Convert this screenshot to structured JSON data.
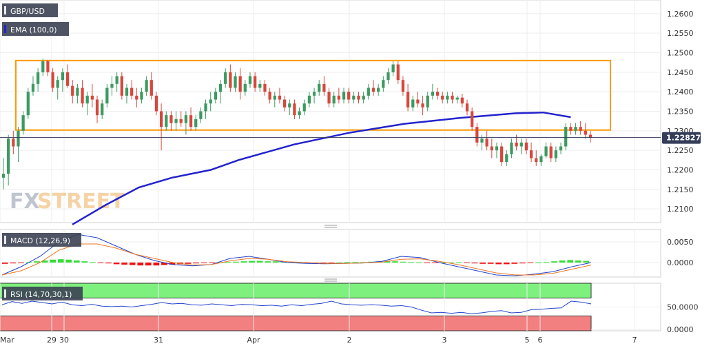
{
  "badges": {
    "symbol": "GBP/USD",
    "ema": "EMA (100,0)",
    "macd": "MACD (12,26,9)",
    "rsi": "RSI (14,70,30,1)"
  },
  "watermark": {
    "left": "FX",
    "right": "STREET"
  },
  "last_price": "1.22827",
  "chart_data": [
    {
      "type": "candlestick",
      "panel": "price",
      "y_ticks": [
        "1.2600",
        "1.2550",
        "1.2500",
        "1.2450",
        "1.2400",
        "1.2350",
        "1.2300",
        "1.2250",
        "1.2200",
        "1.2150",
        "1.2100"
      ],
      "ylim": [
        1.2065,
        1.2635
      ],
      "x_ticks": [
        "Mar",
        "29",
        "30",
        "31",
        "Apr",
        "2",
        "3",
        "5",
        "6",
        "7"
      ],
      "last_price": 1.22827,
      "range_box": {
        "top": 1.248,
        "bottom": 1.2302
      },
      "ema_100": [
        [
          0.0,
          1.206
        ],
        [
          6.0,
          1.211
        ],
        [
          12.0,
          1.2155
        ],
        [
          18.0,
          1.218
        ],
        [
          25.0,
          1.22
        ],
        [
          30.0,
          1.2225
        ],
        [
          40.0,
          1.2265
        ],
        [
          50.0,
          1.2295
        ],
        [
          60.0,
          1.2318
        ],
        [
          70.0,
          1.2333
        ],
        [
          80.0,
          1.2345
        ],
        [
          85.0,
          1.2347
        ],
        [
          90.0,
          1.2335
        ],
        [
          100.0,
          1.2315
        ],
        [
          106.0,
          1.2309
        ]
      ],
      "candles_ohlc": [
        [
          1.218,
          1.223,
          1.215,
          1.219
        ],
        [
          1.219,
          1.229,
          1.216,
          1.228
        ],
        [
          1.228,
          1.23,
          1.224,
          1.226
        ],
        [
          1.226,
          1.231,
          1.222,
          1.23
        ],
        [
          1.23,
          1.235,
          1.229,
          1.234
        ],
        [
          1.234,
          1.241,
          1.233,
          1.24
        ],
        [
          1.24,
          1.244,
          1.239,
          1.242
        ],
        [
          1.242,
          1.246,
          1.24,
          1.245
        ],
        [
          1.245,
          1.2485,
          1.244,
          1.2478
        ],
        [
          1.2478,
          1.2482,
          1.244,
          1.245
        ],
        [
          1.245,
          1.246,
          1.24,
          1.241
        ],
        [
          1.241,
          1.244,
          1.238,
          1.243
        ],
        [
          1.243,
          1.246,
          1.24,
          1.245
        ],
        [
          1.245,
          1.247,
          1.241,
          1.2415
        ],
        [
          1.2415,
          1.243,
          1.237,
          1.239
        ],
        [
          1.239,
          1.242,
          1.237,
          1.241
        ],
        [
          1.241,
          1.243,
          1.236,
          1.237
        ],
        [
          1.237,
          1.24,
          1.234,
          1.239
        ],
        [
          1.239,
          1.242,
          1.236,
          1.238
        ],
        [
          1.238,
          1.239,
          1.232,
          1.234
        ],
        [
          1.234,
          1.238,
          1.233,
          1.237
        ],
        [
          1.237,
          1.242,
          1.236,
          1.241
        ],
        [
          1.241,
          1.244,
          1.239,
          1.242
        ],
        [
          1.242,
          1.245,
          1.24,
          1.244
        ],
        [
          1.244,
          1.245,
          1.238,
          1.239
        ],
        [
          1.239,
          1.242,
          1.237,
          1.241
        ],
        [
          1.241,
          1.243,
          1.238,
          1.239
        ],
        [
          1.239,
          1.241,
          1.236,
          1.238
        ],
        [
          1.238,
          1.241,
          1.237,
          1.24
        ],
        [
          1.24,
          1.244,
          1.239,
          1.243
        ],
        [
          1.243,
          1.245,
          1.238,
          1.239
        ],
        [
          1.239,
          1.24,
          1.234,
          1.235
        ],
        [
          1.235,
          1.237,
          1.225,
          1.231
        ],
        [
          1.231,
          1.235,
          1.23,
          1.234
        ],
        [
          1.234,
          1.235,
          1.23,
          1.232
        ],
        [
          1.232,
          1.235,
          1.23,
          1.233
        ],
        [
          1.233,
          1.235,
          1.231,
          1.232
        ],
        [
          1.232,
          1.235,
          1.229,
          1.234
        ],
        [
          1.234,
          1.236,
          1.23,
          1.231
        ],
        [
          1.231,
          1.234,
          1.23,
          1.233
        ],
        [
          1.233,
          1.236,
          1.232,
          1.235
        ],
        [
          1.235,
          1.238,
          1.233,
          1.237
        ],
        [
          1.237,
          1.24,
          1.235,
          1.238
        ],
        [
          1.238,
          1.241,
          1.237,
          1.24
        ],
        [
          1.24,
          1.243,
          1.237,
          1.242
        ],
        [
          1.242,
          1.246,
          1.241,
          1.245
        ],
        [
          1.245,
          1.247,
          1.24,
          1.241
        ],
        [
          1.241,
          1.245,
          1.24,
          1.244
        ],
        [
          1.244,
          1.246,
          1.238,
          1.24
        ],
        [
          1.24,
          1.243,
          1.239,
          1.242
        ],
        [
          1.242,
          1.245,
          1.241,
          1.244
        ],
        [
          1.244,
          1.245,
          1.24,
          1.241
        ],
        [
          1.241,
          1.243,
          1.24,
          1.242
        ],
        [
          1.242,
          1.243,
          1.239,
          1.24
        ],
        [
          1.24,
          1.241,
          1.237,
          1.238
        ],
        [
          1.238,
          1.24,
          1.236,
          1.239
        ],
        [
          1.239,
          1.241,
          1.237,
          1.238
        ],
        [
          1.238,
          1.239,
          1.235,
          1.236
        ],
        [
          1.236,
          1.238,
          1.234,
          1.237
        ],
        [
          1.237,
          1.238,
          1.233,
          1.234
        ],
        [
          1.234,
          1.236,
          1.233,
          1.235
        ],
        [
          1.235,
          1.238,
          1.234,
          1.237
        ],
        [
          1.237,
          1.24,
          1.236,
          1.239
        ],
        [
          1.239,
          1.241,
          1.237,
          1.24
        ],
        [
          1.24,
          1.243,
          1.239,
          1.242
        ],
        [
          1.242,
          1.244,
          1.239,
          1.24
        ],
        [
          1.24,
          1.241,
          1.236,
          1.237
        ],
        [
          1.237,
          1.24,
          1.236,
          1.239
        ],
        [
          1.239,
          1.241,
          1.237,
          1.238
        ],
        [
          1.238,
          1.241,
          1.237,
          1.24
        ],
        [
          1.24,
          1.241,
          1.237,
          1.238
        ],
        [
          1.238,
          1.24,
          1.237,
          1.239
        ],
        [
          1.239,
          1.24,
          1.237,
          1.238
        ],
        [
          1.238,
          1.24,
          1.237,
          1.239
        ],
        [
          1.239,
          1.242,
          1.238,
          1.241
        ],
        [
          1.241,
          1.243,
          1.239,
          1.24
        ],
        [
          1.24,
          1.242,
          1.239,
          1.241
        ],
        [
          1.241,
          1.244,
          1.24,
          1.243
        ],
        [
          1.243,
          1.246,
          1.242,
          1.245
        ],
        [
          1.245,
          1.2478,
          1.244,
          1.247
        ],
        [
          1.247,
          1.2478,
          1.242,
          1.243
        ],
        [
          1.243,
          1.244,
          1.239,
          1.24
        ],
        [
          1.24,
          1.242,
          1.235,
          1.236
        ],
        [
          1.236,
          1.239,
          1.235,
          1.238
        ],
        [
          1.238,
          1.24,
          1.236,
          1.237
        ],
        [
          1.237,
          1.239,
          1.234,
          1.236
        ],
        [
          1.236,
          1.24,
          1.235,
          1.239
        ],
        [
          1.239,
          1.242,
          1.238,
          1.24
        ],
        [
          1.24,
          1.241,
          1.238,
          1.239
        ],
        [
          1.239,
          1.24,
          1.237,
          1.238
        ],
        [
          1.238,
          1.24,
          1.237,
          1.239
        ],
        [
          1.239,
          1.24,
          1.237,
          1.238
        ],
        [
          1.238,
          1.239,
          1.237,
          1.2385
        ],
        [
          1.2385,
          1.2395,
          1.236,
          1.237
        ],
        [
          1.237,
          1.238,
          1.234,
          1.235
        ],
        [
          1.235,
          1.236,
          1.23,
          1.231
        ],
        [
          1.231,
          1.232,
          1.226,
          1.227
        ],
        [
          1.227,
          1.229,
          1.225,
          1.228
        ],
        [
          1.228,
          1.23,
          1.225,
          1.226
        ],
        [
          1.226,
          1.228,
          1.223,
          1.225
        ],
        [
          1.225,
          1.227,
          1.223,
          1.226
        ],
        [
          1.226,
          1.227,
          1.221,
          1.222
        ],
        [
          1.222,
          1.225,
          1.221,
          1.224
        ],
        [
          1.224,
          1.228,
          1.223,
          1.227
        ],
        [
          1.227,
          1.229,
          1.225,
          1.226
        ],
        [
          1.226,
          1.228,
          1.224,
          1.227
        ],
        [
          1.227,
          1.228,
          1.224,
          1.225
        ],
        [
          1.225,
          1.227,
          1.222,
          1.223
        ],
        [
          1.223,
          1.225,
          1.221,
          1.222
        ],
        [
          1.222,
          1.224,
          1.221,
          1.2235
        ],
        [
          1.2235,
          1.227,
          1.223,
          1.226
        ],
        [
          1.226,
          1.227,
          1.222,
          1.223
        ],
        [
          1.223,
          1.226,
          1.222,
          1.225
        ],
        [
          1.225,
          1.227,
          1.224,
          1.226
        ],
        [
          1.226,
          1.232,
          1.225,
          1.231
        ],
        [
          1.231,
          1.232,
          1.229,
          1.23
        ],
        [
          1.23,
          1.232,
          1.229,
          1.231
        ],
        [
          1.231,
          1.2325,
          1.229,
          1.23
        ],
        [
          1.23,
          1.232,
          1.228,
          1.229
        ],
        [
          1.229,
          1.23,
          1.227,
          1.22827
        ]
      ],
      "candle_x_range": [
        0,
        106
      ]
    },
    {
      "type": "bar+line",
      "panel": "macd",
      "y_ticks": [
        "0.0050",
        "0.0000"
      ],
      "ylim": [
        -0.0035,
        0.008
      ],
      "histogram": [
        -0.0003,
        -0.0002,
        -0.0001,
        0.0001,
        0.0003,
        0.0005,
        0.0007,
        0.0008,
        0.0007,
        0.0005,
        0.0003,
        0.0001,
        -0.0001,
        -0.0002,
        -0.0004,
        -0.0005,
        -0.0006,
        -0.0007,
        -0.0007,
        -0.0007,
        -0.0006,
        -0.0005,
        -0.0004,
        -0.0003,
        -0.0002,
        -0.0001,
        -0.0001,
        0.0,
        0.0001,
        0.0002,
        0.0003,
        0.0004,
        0.0004,
        0.0003,
        0.0003,
        0.0002,
        0.0001,
        0.0,
        -0.0001,
        -0.0002,
        -0.0002,
        -0.0001,
        0.0,
        0.0001,
        0.0001,
        0.0001,
        0.0002,
        0.0003,
        0.0004,
        0.0003,
        0.0002,
        0.0001,
        0.0,
        -0.0001,
        -0.0001,
        0.0,
        0.0,
        0.0,
        -0.0001,
        -0.0002,
        -0.0003,
        -0.0003,
        -0.0004,
        -0.0004,
        -0.0003,
        -0.0002,
        -0.0001,
        0.0,
        0.0001,
        0.0003,
        0.0005,
        0.0006,
        0.0005,
        0.0004
      ],
      "macd_line": [
        -0.003,
        -0.001,
        0.0015,
        0.005,
        0.0068,
        0.006,
        0.004,
        0.002,
        0.0005,
        -0.0005,
        -0.0008,
        -0.0005,
        0.001,
        0.0015,
        0.0008,
        0.0,
        -0.0002,
        -0.0003,
        -0.0002,
        -0.0001,
        0.0003,
        0.0015,
        0.0012,
        0.0,
        -0.001,
        -0.002,
        -0.003,
        -0.0032,
        -0.0028,
        -0.0022,
        -0.001,
        0.0
      ],
      "signal_line": [
        -0.003,
        -0.002,
        0.0,
        0.003,
        0.0045,
        0.0045,
        0.0035,
        0.002,
        0.001,
        0.0,
        -0.0006,
        -0.0005,
        0.0004,
        0.001,
        0.0008,
        0.0002,
        0.0,
        -0.0002,
        -0.0002,
        -0.0001,
        0.0001,
        0.0008,
        0.0009,
        0.0003,
        -0.0005,
        -0.0015,
        -0.0025,
        -0.003,
        -0.003,
        -0.0026,
        -0.0016,
        -0.0006
      ]
    },
    {
      "type": "line",
      "panel": "rsi",
      "y_ticks": [
        "50.0000",
        "0.0000"
      ],
      "ylim": [
        0,
        100
      ],
      "overbought": 70,
      "oversold": 30,
      "rsi_line": [
        55,
        62,
        58,
        63,
        60,
        57,
        61,
        55,
        53,
        56,
        52,
        51,
        52,
        50,
        53,
        56,
        60,
        57,
        58,
        55,
        54,
        57,
        55,
        53,
        56,
        55,
        53,
        54,
        52,
        55,
        53,
        56,
        58,
        63,
        57,
        55,
        54,
        55,
        54,
        52,
        53,
        50,
        43,
        37,
        38,
        36,
        38,
        35,
        37,
        40,
        42,
        37,
        38,
        44,
        45,
        47,
        48,
        63,
        61,
        57
      ]
    }
  ]
}
